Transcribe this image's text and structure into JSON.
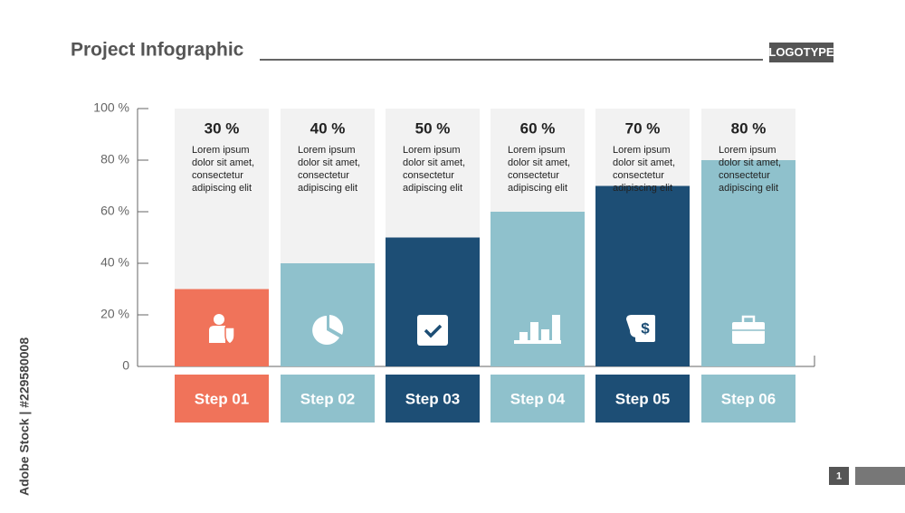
{
  "chart_data": {
    "type": "bar",
    "title": "Project Infographic",
    "logotype": "LOGOTYPE",
    "categories": [
      "Step 01",
      "Step 02",
      "Step 03",
      "Step 04",
      "Step 05",
      "Step 06"
    ],
    "values": [
      30,
      40,
      50,
      60,
      70,
      80
    ],
    "value_labels": [
      "30 %",
      "40 %",
      "50 %",
      "60 %",
      "70 %",
      "80 %"
    ],
    "colors": [
      "#f0735a",
      "#8fc1cc",
      "#1d4e75",
      "#8fc1cc",
      "#1d4e75",
      "#8fc1cc"
    ],
    "descriptions": [
      [
        "Lorem ipsum",
        "dolor sit amet,",
        "consectetur",
        "adipiscing elit"
      ],
      [
        "Lorem ipsum",
        "dolor sit amet,",
        "consectetur",
        "adipiscing elit"
      ],
      [
        "Lorem ipsum",
        "dolor sit amet,",
        "consectetur",
        "adipiscing elit"
      ],
      [
        "Lorem ipsum",
        "dolor sit amet,",
        "consectetur",
        "adipiscing elit"
      ],
      [
        "Lorem ipsum",
        "dolor sit amet,",
        "consectetur",
        "adipiscing elit"
      ],
      [
        "Lorem ipsum",
        "dolor sit amet,",
        "consectetur",
        "adipiscing elit"
      ]
    ],
    "ylim": [
      0,
      100
    ],
    "yticks": [
      0,
      {
        "value": 20,
        "label": "20 %"
      },
      {
        "value": 40,
        "label": "40 %"
      },
      {
        "value": 60,
        "label": "60 %"
      },
      {
        "value": 80,
        "label": "80 %"
      },
      {
        "value": 100,
        "label": "100 %"
      }
    ]
  },
  "page_number": "1",
  "watermark": "Adobe Stock | #229580008"
}
